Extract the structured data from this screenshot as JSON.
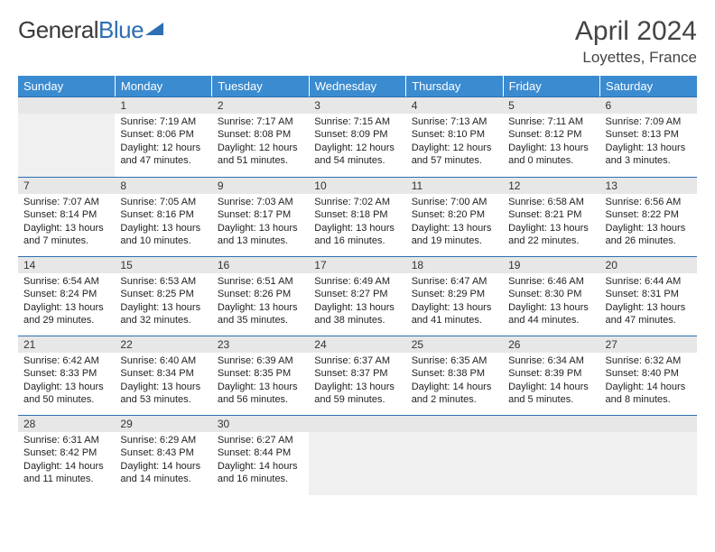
{
  "brand": {
    "part1": "General",
    "part2": "Blue"
  },
  "title": "April 2024",
  "location": "Loyettes, France",
  "colors": {
    "header_bg": "#3b8bd0",
    "header_text": "#ffffff",
    "daynum_bg": "#e7e7e7",
    "row_border": "#2d6fb3",
    "body_text": "#222222",
    "empty_fill": "#f0f0f0",
    "page_bg": "#ffffff",
    "logo_gray": "#3a3a3a",
    "logo_blue": "#2d6fb3"
  },
  "fonts": {
    "title_size_pt": 30,
    "location_size_pt": 17,
    "weekday_size_pt": 13,
    "daynum_size_pt": 12,
    "cell_size_pt": 11
  },
  "weekdays": [
    "Sunday",
    "Monday",
    "Tuesday",
    "Wednesday",
    "Thursday",
    "Friday",
    "Saturday"
  ],
  "start_offset": 1,
  "days": [
    {
      "n": 1,
      "sunrise": "7:19 AM",
      "sunset": "8:06 PM",
      "daylight": "12 hours and 47 minutes."
    },
    {
      "n": 2,
      "sunrise": "7:17 AM",
      "sunset": "8:08 PM",
      "daylight": "12 hours and 51 minutes."
    },
    {
      "n": 3,
      "sunrise": "7:15 AM",
      "sunset": "8:09 PM",
      "daylight": "12 hours and 54 minutes."
    },
    {
      "n": 4,
      "sunrise": "7:13 AM",
      "sunset": "8:10 PM",
      "daylight": "12 hours and 57 minutes."
    },
    {
      "n": 5,
      "sunrise": "7:11 AM",
      "sunset": "8:12 PM",
      "daylight": "13 hours and 0 minutes."
    },
    {
      "n": 6,
      "sunrise": "7:09 AM",
      "sunset": "8:13 PM",
      "daylight": "13 hours and 3 minutes."
    },
    {
      "n": 7,
      "sunrise": "7:07 AM",
      "sunset": "8:14 PM",
      "daylight": "13 hours and 7 minutes."
    },
    {
      "n": 8,
      "sunrise": "7:05 AM",
      "sunset": "8:16 PM",
      "daylight": "13 hours and 10 minutes."
    },
    {
      "n": 9,
      "sunrise": "7:03 AM",
      "sunset": "8:17 PM",
      "daylight": "13 hours and 13 minutes."
    },
    {
      "n": 10,
      "sunrise": "7:02 AM",
      "sunset": "8:18 PM",
      "daylight": "13 hours and 16 minutes."
    },
    {
      "n": 11,
      "sunrise": "7:00 AM",
      "sunset": "8:20 PM",
      "daylight": "13 hours and 19 minutes."
    },
    {
      "n": 12,
      "sunrise": "6:58 AM",
      "sunset": "8:21 PM",
      "daylight": "13 hours and 22 minutes."
    },
    {
      "n": 13,
      "sunrise": "6:56 AM",
      "sunset": "8:22 PM",
      "daylight": "13 hours and 26 minutes."
    },
    {
      "n": 14,
      "sunrise": "6:54 AM",
      "sunset": "8:24 PM",
      "daylight": "13 hours and 29 minutes."
    },
    {
      "n": 15,
      "sunrise": "6:53 AM",
      "sunset": "8:25 PM",
      "daylight": "13 hours and 32 minutes."
    },
    {
      "n": 16,
      "sunrise": "6:51 AM",
      "sunset": "8:26 PM",
      "daylight": "13 hours and 35 minutes."
    },
    {
      "n": 17,
      "sunrise": "6:49 AM",
      "sunset": "8:27 PM",
      "daylight": "13 hours and 38 minutes."
    },
    {
      "n": 18,
      "sunrise": "6:47 AM",
      "sunset": "8:29 PM",
      "daylight": "13 hours and 41 minutes."
    },
    {
      "n": 19,
      "sunrise": "6:46 AM",
      "sunset": "8:30 PM",
      "daylight": "13 hours and 44 minutes."
    },
    {
      "n": 20,
      "sunrise": "6:44 AM",
      "sunset": "8:31 PM",
      "daylight": "13 hours and 47 minutes."
    },
    {
      "n": 21,
      "sunrise": "6:42 AM",
      "sunset": "8:33 PM",
      "daylight": "13 hours and 50 minutes."
    },
    {
      "n": 22,
      "sunrise": "6:40 AM",
      "sunset": "8:34 PM",
      "daylight": "13 hours and 53 minutes."
    },
    {
      "n": 23,
      "sunrise": "6:39 AM",
      "sunset": "8:35 PM",
      "daylight": "13 hours and 56 minutes."
    },
    {
      "n": 24,
      "sunrise": "6:37 AM",
      "sunset": "8:37 PM",
      "daylight": "13 hours and 59 minutes."
    },
    {
      "n": 25,
      "sunrise": "6:35 AM",
      "sunset": "8:38 PM",
      "daylight": "14 hours and 2 minutes."
    },
    {
      "n": 26,
      "sunrise": "6:34 AM",
      "sunset": "8:39 PM",
      "daylight": "14 hours and 5 minutes."
    },
    {
      "n": 27,
      "sunrise": "6:32 AM",
      "sunset": "8:40 PM",
      "daylight": "14 hours and 8 minutes."
    },
    {
      "n": 28,
      "sunrise": "6:31 AM",
      "sunset": "8:42 PM",
      "daylight": "14 hours and 11 minutes."
    },
    {
      "n": 29,
      "sunrise": "6:29 AM",
      "sunset": "8:43 PM",
      "daylight": "14 hours and 14 minutes."
    },
    {
      "n": 30,
      "sunrise": "6:27 AM",
      "sunset": "8:44 PM",
      "daylight": "14 hours and 16 minutes."
    }
  ],
  "labels": {
    "sunrise": "Sunrise:",
    "sunset": "Sunset:",
    "daylight": "Daylight:"
  }
}
